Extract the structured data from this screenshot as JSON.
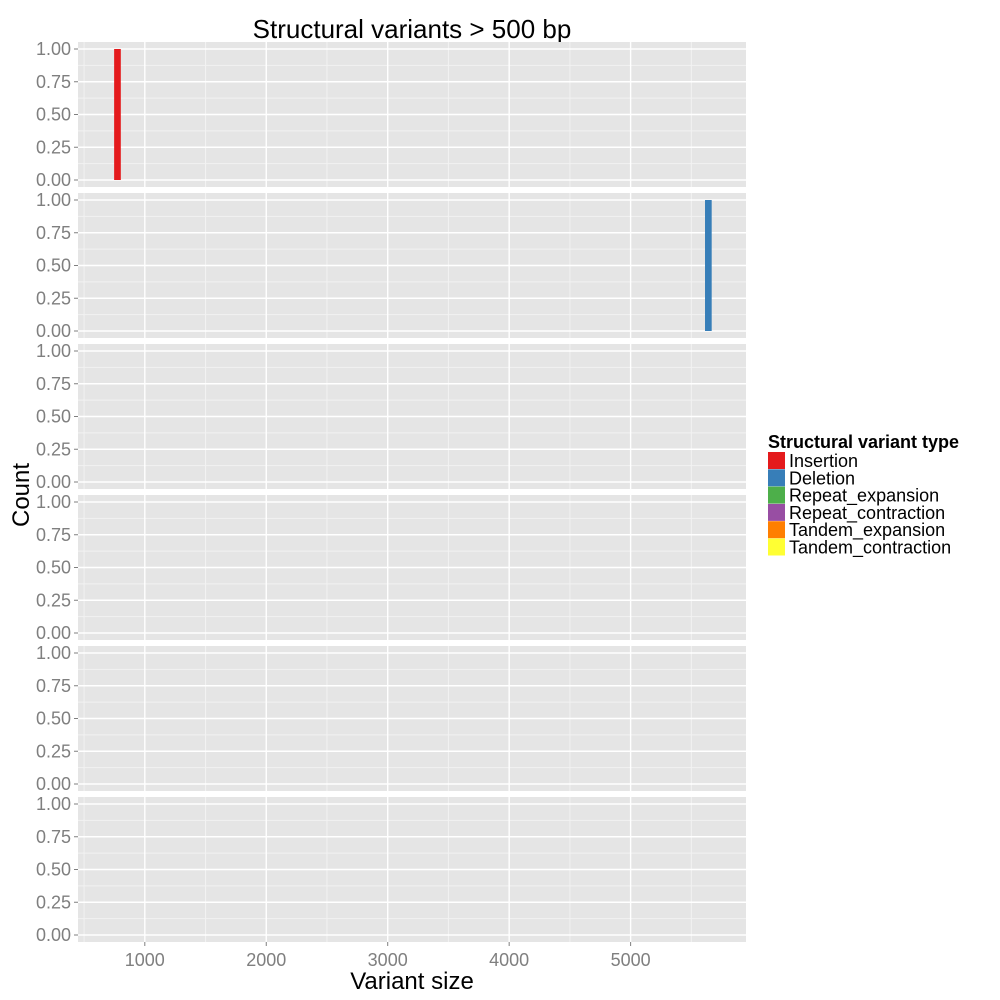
{
  "chart_data": {
    "type": "bar",
    "title": "Structural variants > 500 bp",
    "xlabel": "Variant size",
    "ylabel": "Count",
    "xlim": [
      450,
      5950
    ],
    "ylim": [
      0,
      1
    ],
    "x_ticks": [
      1000,
      2000,
      3000,
      4000,
      5000
    ],
    "x_tick_labels": [
      "1000",
      "2000",
      "3000",
      "4000",
      "5000"
    ],
    "y_ticks": [
      0,
      0.25,
      0.5,
      0.75,
      1
    ],
    "y_tick_labels": [
      "0.00",
      "0.25",
      "0.50",
      "0.75",
      "1.00"
    ],
    "grid": true,
    "legend_position": "right",
    "legend_title": "Structural variant type",
    "bin_width": 55,
    "series": [
      {
        "name": "Insertion",
        "color": "#E41A1C",
        "bins": [
          {
            "x": 775,
            "count": 1
          }
        ]
      },
      {
        "name": "Deletion",
        "color": "#377EB8",
        "bins": [
          {
            "x": 5640,
            "count": 1
          }
        ]
      },
      {
        "name": "Repeat_expansion",
        "color": "#4DAF4A",
        "bins": []
      },
      {
        "name": "Repeat_contraction",
        "color": "#984EA3",
        "bins": []
      },
      {
        "name": "Tandem_expansion",
        "color": "#FF7F00",
        "bins": []
      },
      {
        "name": "Tandem_contraction",
        "color": "#FFFF33",
        "bins": []
      }
    ]
  }
}
